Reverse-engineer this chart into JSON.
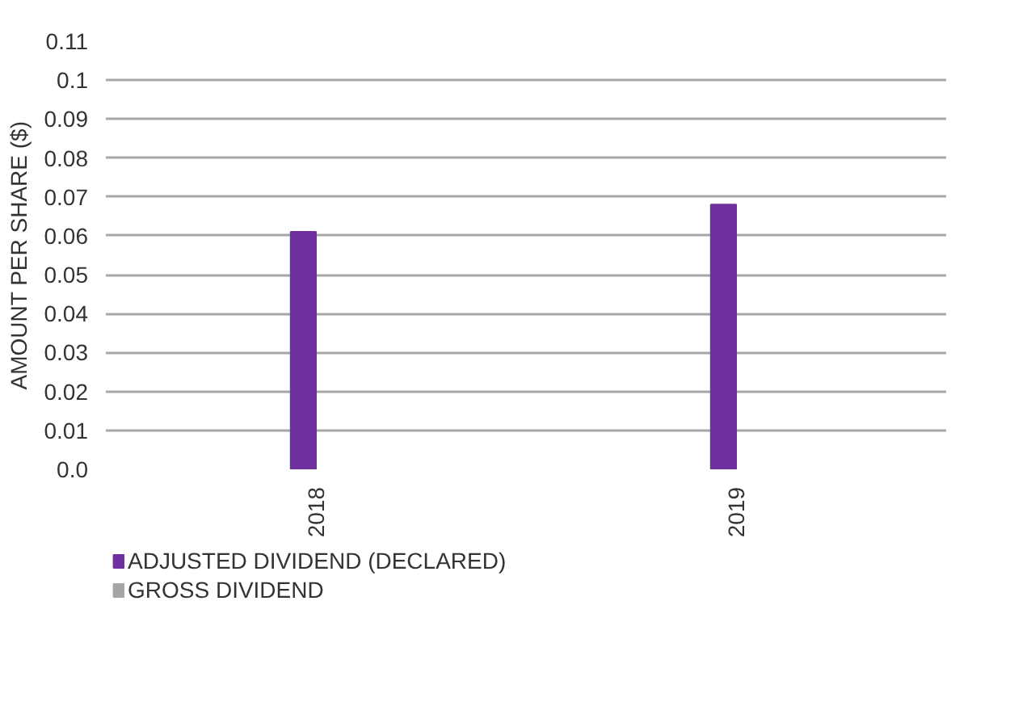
{
  "chart_data": {
    "type": "bar",
    "ylabel": "AMOUNT PER SHARE ($)",
    "categories": [
      "2018",
      "2019"
    ],
    "series": [
      {
        "name": "ADJUSTED DIVIDEND (DECLARED)",
        "color": "#7030a0",
        "values": [
          0.061,
          0.068
        ]
      },
      {
        "name": "GROSS DIVIDEND",
        "color": "#a5a5a5",
        "values": [
          null,
          null
        ]
      }
    ],
    "ylim": [
      0,
      0.11
    ],
    "yticks": [
      {
        "value": 0,
        "label": "0.0"
      },
      0.01,
      0.02,
      0.03,
      0.04,
      0.05,
      0.06,
      0.07,
      0.08,
      0.09,
      {
        "value": 0.1,
        "label": "0.1"
      },
      0.11
    ],
    "grid": "y",
    "legend": "bottom"
  }
}
